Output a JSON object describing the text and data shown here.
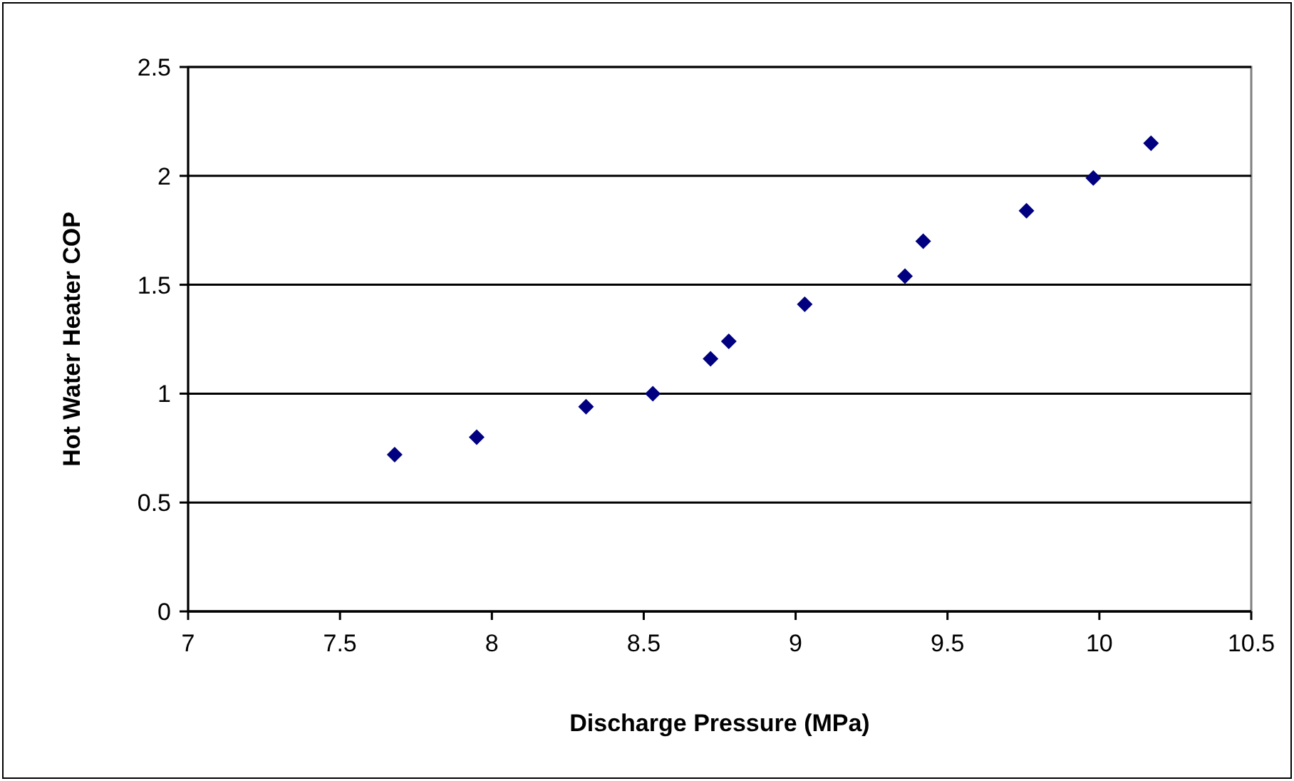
{
  "chart_data": {
    "type": "scatter",
    "xlabel": "Discharge Pressure (MPa)",
    "ylabel": "Hot Water Heater COP",
    "x": [
      7.68,
      7.95,
      8.31,
      8.53,
      8.72,
      8.78,
      9.03,
      9.36,
      9.42,
      9.76,
      9.98,
      10.17
    ],
    "series": [
      {
        "color": "#000080",
        "values": [
          0.72,
          0.8,
          0.94,
          1.0,
          1.16,
          1.24,
          1.41,
          1.54,
          1.7,
          1.84,
          1.99,
          2.15
        ]
      }
    ],
    "xlim": [
      7,
      10.5
    ],
    "xticks": [
      7,
      7.5,
      8,
      8.5,
      9,
      9.5,
      10,
      10.5
    ],
    "ylim": [
      0,
      2.5
    ],
    "yticks": [
      0,
      0.5,
      1,
      1.5,
      2,
      2.5
    ],
    "grid": "y",
    "marker": "diamond"
  }
}
